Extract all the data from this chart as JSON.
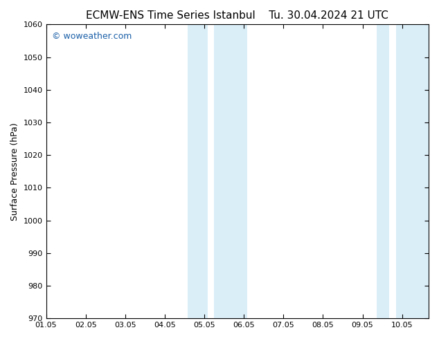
{
  "title_left": "ECMW-ENS Time Series Istanbul",
  "title_right": "Tu. 30.04.2024 21 UTC",
  "ylabel": "Surface Pressure (hPa)",
  "ylim": [
    970,
    1060
  ],
  "yticks": [
    970,
    980,
    990,
    1000,
    1010,
    1020,
    1030,
    1040,
    1050,
    1060
  ],
  "xlim_min": 0.0,
  "xlim_max": 9.67,
  "xtick_labels": [
    "01.05",
    "02.05",
    "03.05",
    "04.05",
    "05.05",
    "06.05",
    "07.05",
    "08.05",
    "09.05",
    "10.05"
  ],
  "xtick_positions": [
    0.0,
    1.0,
    2.0,
    3.0,
    4.0,
    5.0,
    6.0,
    7.0,
    8.0,
    9.0
  ],
  "shaded_bands": [
    {
      "xmin": 3.58,
      "xmax": 4.08,
      "color": "#daeef8"
    },
    {
      "xmin": 4.25,
      "xmax": 5.08,
      "color": "#daeef8"
    },
    {
      "xmin": 8.35,
      "xmax": 8.68,
      "color": "#daeef8"
    },
    {
      "xmin": 8.85,
      "xmax": 9.67,
      "color": "#daeef8"
    }
  ],
  "watermark_text": "© woweather.com",
  "watermark_color": "#1a5fa8",
  "watermark_fontsize": 9,
  "bg_color": "#ffffff",
  "title_fontsize": 11,
  "tick_fontsize": 8,
  "ylabel_fontsize": 9
}
